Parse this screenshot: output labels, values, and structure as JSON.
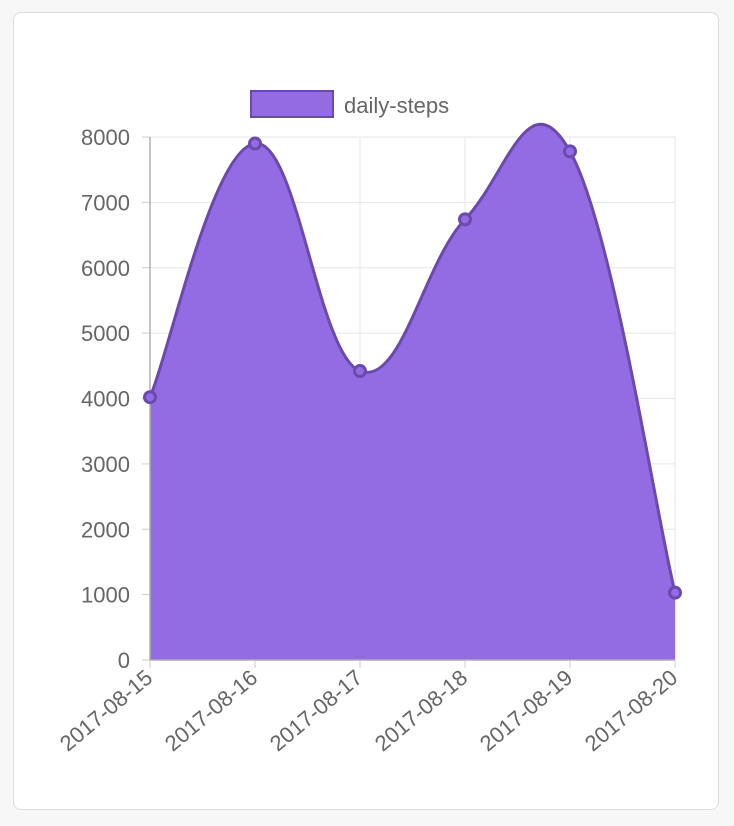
{
  "chart_data": {
    "type": "area",
    "categories": [
      "2017-08-15",
      "2017-08-16",
      "2017-08-17",
      "2017-08-18",
      "2017-08-19",
      "2017-08-20"
    ],
    "series": [
      {
        "name": "daily-steps",
        "values": [
          4020,
          7900,
          4420,
          6740,
          7780,
          1030
        ],
        "fill_color": "#936be3",
        "line_color": "#6a4aad"
      }
    ],
    "title": "",
    "xlabel": "",
    "ylabel": "",
    "ylim": [
      0,
      8000
    ],
    "yticks": [
      "0",
      "1000",
      "2000",
      "3000",
      "4000",
      "5000",
      "6000",
      "7000",
      "8000"
    ],
    "grid": true,
    "legend_position": "top"
  }
}
